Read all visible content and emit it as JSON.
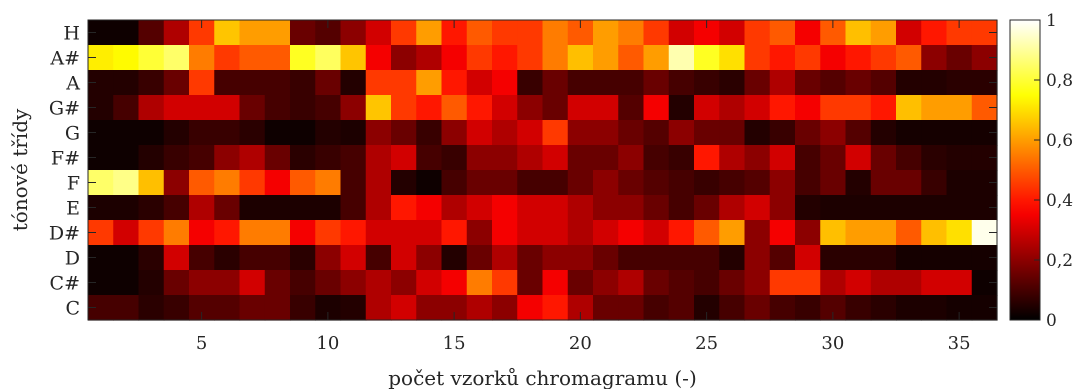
{
  "chart_data": {
    "type": "heatmap",
    "title": "",
    "xlabel": "počet vzorků chromagramu (-)",
    "ylabel": "tónové třídy",
    "row_labels": [
      "H",
      "A#",
      "A",
      "G#",
      "G",
      "F#",
      "F",
      "E",
      "D#",
      "D",
      "C#",
      "C"
    ],
    "x_range": [
      1,
      36
    ],
    "x_ticks": [
      5,
      10,
      15,
      20,
      25,
      30,
      35
    ],
    "x_tick_labels": [
      "5",
      "10",
      "15",
      "20",
      "25",
      "30",
      "35"
    ],
    "colorbar": {
      "colormap": "hot",
      "range": [
        0,
        1
      ],
      "ticks": [
        0,
        0.2,
        0.4,
        0.6,
        0.8,
        1
      ],
      "tick_labels": [
        "0",
        "0,2",
        "0,4",
        "0,6",
        "0,8",
        "1"
      ]
    },
    "values": [
      [
        0.02,
        0.02,
        0.12,
        0.25,
        0.45,
        0.66,
        0.6,
        0.6,
        0.15,
        0.12,
        0.2,
        0.3,
        0.45,
        0.6,
        0.4,
        0.5,
        0.45,
        0.45,
        0.55,
        0.5,
        0.6,
        0.55,
        0.45,
        0.3,
        0.35,
        0.3,
        0.45,
        0.5,
        0.35,
        0.5,
        0.65,
        0.6,
        0.3,
        0.4,
        0.45,
        0.45
      ],
      [
        0.72,
        0.74,
        0.8,
        0.85,
        0.55,
        0.45,
        0.5,
        0.5,
        0.78,
        0.84,
        0.66,
        0.35,
        0.2,
        0.25,
        0.35,
        0.45,
        0.4,
        0.45,
        0.55,
        0.65,
        0.6,
        0.5,
        0.6,
        0.92,
        0.78,
        0.7,
        0.45,
        0.4,
        0.45,
        0.35,
        0.4,
        0.45,
        0.5,
        0.2,
        0.15,
        0.2
      ],
      [
        0.05,
        0.05,
        0.08,
        0.15,
        0.45,
        0.1,
        0.1,
        0.1,
        0.08,
        0.15,
        0.05,
        0.45,
        0.45,
        0.6,
        0.4,
        0.3,
        0.35,
        0.08,
        0.15,
        0.1,
        0.1,
        0.1,
        0.15,
        0.1,
        0.08,
        0.06,
        0.15,
        0.25,
        0.15,
        0.12,
        0.15,
        0.12,
        0.05,
        0.05,
        0.06,
        0.06
      ],
      [
        0.05,
        0.1,
        0.25,
        0.3,
        0.3,
        0.3,
        0.15,
        0.1,
        0.08,
        0.1,
        0.2,
        0.66,
        0.45,
        0.4,
        0.5,
        0.4,
        0.3,
        0.2,
        0.15,
        0.3,
        0.3,
        0.12,
        0.35,
        0.05,
        0.3,
        0.25,
        0.3,
        0.4,
        0.35,
        0.45,
        0.45,
        0.4,
        0.65,
        0.6,
        0.6,
        0.5
      ],
      [
        0.02,
        0.02,
        0.02,
        0.05,
        0.08,
        0.08,
        0.06,
        0.02,
        0.02,
        0.05,
        0.04,
        0.2,
        0.15,
        0.08,
        0.2,
        0.3,
        0.25,
        0.3,
        0.45,
        0.2,
        0.2,
        0.15,
        0.12,
        0.2,
        0.15,
        0.15,
        0.05,
        0.08,
        0.15,
        0.2,
        0.12,
        0.05,
        0.03,
        0.03,
        0.03,
        0.03
      ],
      [
        0.02,
        0.02,
        0.05,
        0.08,
        0.1,
        0.2,
        0.25,
        0.15,
        0.06,
        0.08,
        0.1,
        0.25,
        0.3,
        0.1,
        0.08,
        0.2,
        0.2,
        0.25,
        0.3,
        0.15,
        0.15,
        0.2,
        0.1,
        0.08,
        0.4,
        0.25,
        0.2,
        0.3,
        0.1,
        0.15,
        0.3,
        0.15,
        0.1,
        0.06,
        0.05,
        0.05
      ],
      [
        0.85,
        0.88,
        0.65,
        0.2,
        0.5,
        0.55,
        0.45,
        0.35,
        0.5,
        0.55,
        0.1,
        0.25,
        0.05,
        0.02,
        0.1,
        0.15,
        0.15,
        0.1,
        0.1,
        0.15,
        0.2,
        0.15,
        0.12,
        0.1,
        0.08,
        0.1,
        0.12,
        0.2,
        0.1,
        0.15,
        0.05,
        0.15,
        0.15,
        0.08,
        0.04,
        0.04
      ],
      [
        0.04,
        0.04,
        0.06,
        0.1,
        0.25,
        0.15,
        0.04,
        0.04,
        0.04,
        0.04,
        0.1,
        0.25,
        0.4,
        0.35,
        0.25,
        0.3,
        0.35,
        0.3,
        0.3,
        0.25,
        0.2,
        0.2,
        0.15,
        0.1,
        0.15,
        0.25,
        0.3,
        0.2,
        0.05,
        0.04,
        0.04,
        0.04,
        0.04,
        0.04,
        0.04,
        0.04
      ],
      [
        0.45,
        0.3,
        0.45,
        0.55,
        0.35,
        0.4,
        0.55,
        0.55,
        0.35,
        0.45,
        0.4,
        0.3,
        0.3,
        0.3,
        0.4,
        0.2,
        0.35,
        0.3,
        0.3,
        0.25,
        0.3,
        0.35,
        0.3,
        0.4,
        0.5,
        0.6,
        0.2,
        0.35,
        0.2,
        0.65,
        0.6,
        0.6,
        0.5,
        0.65,
        0.7,
        0.98
      ],
      [
        0.02,
        0.02,
        0.06,
        0.3,
        0.1,
        0.06,
        0.1,
        0.1,
        0.06,
        0.2,
        0.3,
        0.1,
        0.3,
        0.2,
        0.05,
        0.15,
        0.25,
        0.15,
        0.2,
        0.2,
        0.15,
        0.1,
        0.1,
        0.1,
        0.1,
        0.05,
        0.2,
        0.12,
        0.3,
        0.06,
        0.06,
        0.06,
        0.03,
        0.03,
        0.03,
        0.03
      ],
      [
        0.02,
        0.02,
        0.05,
        0.15,
        0.2,
        0.2,
        0.3,
        0.15,
        0.1,
        0.15,
        0.2,
        0.25,
        0.2,
        0.3,
        0.35,
        0.55,
        0.45,
        0.15,
        0.35,
        0.15,
        0.2,
        0.25,
        0.15,
        0.12,
        0.1,
        0.15,
        0.2,
        0.45,
        0.45,
        0.25,
        0.3,
        0.25,
        0.25,
        0.3,
        0.3,
        0.02
      ],
      [
        0.1,
        0.1,
        0.06,
        0.08,
        0.12,
        0.12,
        0.15,
        0.15,
        0.08,
        0.04,
        0.05,
        0.25,
        0.3,
        0.2,
        0.2,
        0.25,
        0.2,
        0.35,
        0.4,
        0.25,
        0.15,
        0.15,
        0.1,
        0.12,
        0.05,
        0.1,
        0.15,
        0.1,
        0.08,
        0.12,
        0.08,
        0.06,
        0.04,
        0.04,
        0.03,
        0.03
      ]
    ]
  }
}
